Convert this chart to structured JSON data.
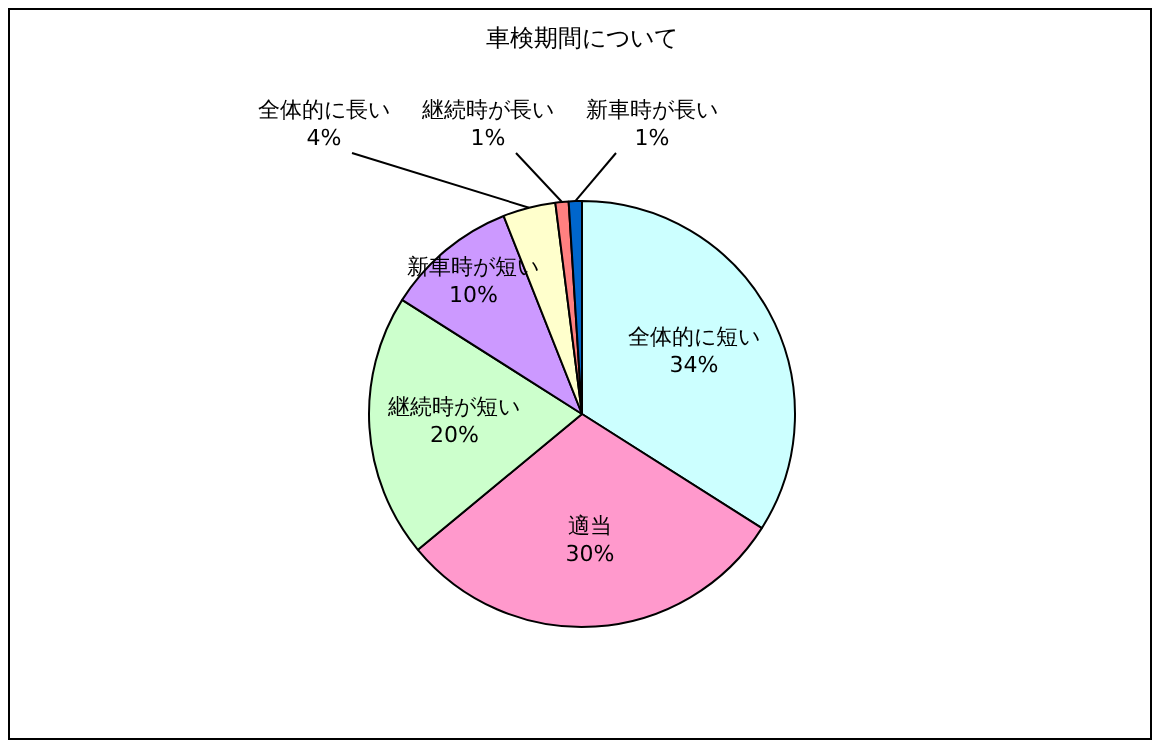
{
  "chart_data": {
    "type": "pie",
    "title": "車検期間について",
    "categories": [
      "全体的に短い",
      "適当",
      "継続時が短い",
      "新車時が短い",
      "全体的に長い",
      "継続時が長い",
      "新車時が長い"
    ],
    "values": [
      34,
      30,
      20,
      10,
      4,
      1,
      1
    ],
    "colors": [
      "#ccffff",
      "#ff99cc",
      "#ccffcc",
      "#cc99ff",
      "#ffffcc",
      "#ff8080",
      "#0066cc"
    ],
    "value_labels": [
      "34%",
      "30%",
      "20%",
      "10%",
      "4%",
      "1%",
      "1%"
    ],
    "legend": false
  }
}
